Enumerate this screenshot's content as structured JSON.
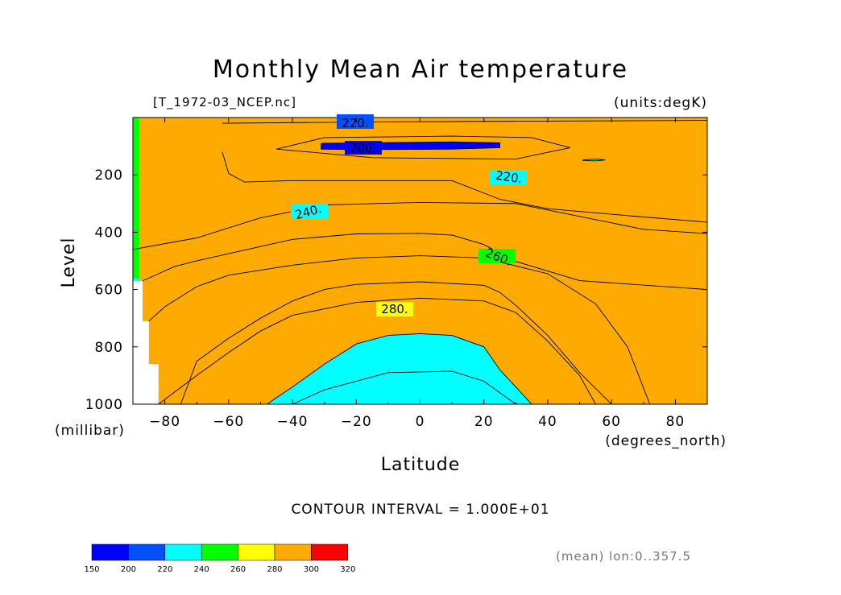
{
  "chart_data": {
    "type": "contour",
    "title": "Monthly Mean Air temperature",
    "file_label": "[T_1972-03_NCEP.nc]",
    "units_label": "(units:degK)",
    "xlabel": "Latitude",
    "x_units": "(degrees_north)",
    "ylabel": "Level",
    "y_units": "(millibar)",
    "footer": "CONTOUR INTERVAL = 1.000E+01",
    "note": "(mean) lon:0..357.5",
    "xlim": [
      -90,
      90
    ],
    "ylim": [
      0,
      1000
    ],
    "y_axis_inverted": true,
    "x_ticks": [
      "−80",
      "−60",
      "−40",
      "−20",
      "0",
      "20",
      "40",
      "60",
      "80"
    ],
    "x_tick_values": [
      -80,
      -60,
      -40,
      -20,
      0,
      20,
      40,
      60,
      80
    ],
    "y_ticks": [
      "200",
      "400",
      "600",
      "800",
      "1000"
    ],
    "y_tick_values": [
      200,
      400,
      600,
      800,
      1000
    ],
    "contour_labels": [
      "220.",
      "200.",
      "220.",
      "240.",
      "260.",
      "280."
    ],
    "colorbar": {
      "ticks": [
        "150",
        "200",
        "220",
        "240",
        "260",
        "280",
        "300",
        "320"
      ],
      "colors": [
        "#0000ff",
        "#0050ff",
        "#00ffff",
        "#00ff00",
        "#ffff00",
        "#ffaa00",
        "#ff0000"
      ]
    },
    "fill_colors": {
      "c200": "#0000ff",
      "c220": "#0050ff",
      "c240": "#00ffff",
      "c260": "#00ff00",
      "c280": "#ffff00",
      "c300": "#ffaa00"
    },
    "regions": {
      "p220": [
        [
          -62,
          20
        ],
        [
          -12,
          15
        ],
        [
          30,
          13
        ],
        [
          90,
          10
        ],
        [
          90,
          365
        ],
        [
          70,
          347
        ],
        [
          40,
          318
        ],
        [
          25,
          285
        ],
        [
          10,
          220
        ],
        [
          -40,
          220
        ],
        [
          -55,
          225
        ],
        [
          -60,
          195
        ],
        [
          -62,
          120
        ]
      ],
      "p240": [
        [
          -90,
          0
        ],
        [
          90,
          0
        ],
        [
          90,
          600
        ],
        [
          50,
          569
        ],
        [
          30,
          502
        ],
        [
          20,
          443
        ],
        [
          10,
          410
        ],
        [
          0,
          404
        ],
        [
          -20,
          406
        ],
        [
          -40,
          425
        ],
        [
          -50,
          450
        ],
        [
          -60,
          475
        ],
        [
          -70,
          500
        ],
        [
          -77,
          520
        ],
        [
          -85,
          560
        ],
        [
          -90,
          560
        ]
      ],
      "p260": [
        [
          -88,
          0
        ],
        [
          90,
          0
        ],
        [
          90,
          1000
        ],
        [
          60,
          1000
        ],
        [
          50,
          890
        ],
        [
          40,
          760
        ],
        [
          30,
          655
        ],
        [
          25,
          610
        ],
        [
          20,
          585
        ],
        [
          0,
          573
        ],
        [
          -20,
          582
        ],
        [
          -30,
          600
        ],
        [
          -40,
          640
        ],
        [
          -50,
          700
        ],
        [
          -60,
          770
        ],
        [
          -70,
          850
        ],
        [
          -75,
          1000
        ],
        [
          -88,
          1000
        ]
      ],
      "p280": [
        [
          -88,
          0
        ],
        [
          90,
          0
        ],
        [
          90,
          1000
        ],
        [
          35,
          1000
        ],
        [
          25,
          880
        ],
        [
          20,
          800
        ],
        [
          10,
          760
        ],
        [
          0,
          754
        ],
        [
          -10,
          760
        ],
        [
          -20,
          790
        ],
        [
          -30,
          860
        ],
        [
          -40,
          940
        ],
        [
          -48,
          1000
        ],
        [
          -88,
          1000
        ]
      ],
      "p200": [
        [
          -31,
          90
        ],
        [
          10,
          85
        ],
        [
          25,
          88
        ],
        [
          25,
          105
        ],
        [
          10,
          110
        ],
        [
          -20,
          112
        ],
        [
          -31,
          110
        ]
      ],
      "cyanBlob": [
        [
          51,
          148
        ],
        [
          55,
          145
        ],
        [
          58,
          148
        ],
        [
          55,
          151
        ],
        [
          51,
          150
        ]
      ],
      "whiteBlock": [
        [
          -90,
          570
        ],
        [
          -87,
          570
        ],
        [
          -87,
          710
        ],
        [
          -85,
          710
        ],
        [
          -85,
          860
        ],
        [
          -82,
          860
        ],
        [
          -82,
          1000
        ],
        [
          -90,
          1000
        ]
      ]
    },
    "contour_lines": [
      [
        [
          -62,
          20
        ],
        [
          -12,
          15
        ],
        [
          30,
          13
        ],
        [
          90,
          10
        ]
      ],
      [
        [
          90,
          365
        ],
        [
          70,
          347
        ],
        [
          40,
          318
        ],
        [
          25,
          285
        ],
        [
          10,
          220
        ],
        [
          -40,
          220
        ],
        [
          -55,
          225
        ],
        [
          -60,
          195
        ],
        [
          -62,
          120
        ]
      ],
      [
        [
          -31,
          90
        ],
        [
          10,
          85
        ],
        [
          25,
          88
        ],
        [
          25,
          105
        ],
        [
          10,
          110
        ],
        [
          -20,
          112
        ],
        [
          -31,
          110
        ],
        [
          -31,
          90
        ]
      ],
      [
        [
          -45,
          110
        ],
        [
          -30,
          70
        ],
        [
          10,
          65
        ],
        [
          35,
          70
        ],
        [
          47,
          105
        ],
        [
          30,
          145
        ],
        [
          -15,
          140
        ],
        [
          -45,
          110
        ]
      ],
      [
        [
          51,
          148
        ],
        [
          55,
          145
        ],
        [
          58,
          148
        ],
        [
          55,
          151
        ],
        [
          51,
          150
        ],
        [
          51,
          148
        ]
      ],
      [
        [
          -90,
          460
        ],
        [
          -70,
          420
        ],
        [
          -50,
          350
        ],
        [
          -30,
          305
        ],
        [
          0,
          296
        ],
        [
          30,
          300
        ],
        [
          50,
          345
        ],
        [
          70,
          390
        ],
        [
          90,
          405
        ]
      ],
      [
        [
          90,
          600
        ],
        [
          50,
          569
        ],
        [
          30,
          502
        ],
        [
          20,
          443
        ],
        [
          10,
          410
        ],
        [
          0,
          404
        ],
        [
          -20,
          406
        ],
        [
          -40,
          425
        ],
        [
          -50,
          450
        ],
        [
          -60,
          475
        ],
        [
          -70,
          500
        ],
        [
          -77,
          520
        ],
        [
          -85,
          560
        ],
        [
          -87,
          570
        ]
      ],
      [
        [
          -85,
          710
        ],
        [
          -80,
          660
        ],
        [
          -70,
          590
        ],
        [
          -60,
          550
        ],
        [
          -40,
          515
        ],
        [
          -20,
          490
        ],
        [
          0,
          482
        ],
        [
          20,
          490
        ],
        [
          40,
          545
        ],
        [
          55,
          650
        ],
        [
          65,
          800
        ],
        [
          72,
          1000
        ]
      ],
      [
        [
          60,
          1000
        ],
        [
          50,
          890
        ],
        [
          40,
          760
        ],
        [
          30,
          655
        ],
        [
          25,
          610
        ],
        [
          20,
          585
        ],
        [
          0,
          573
        ],
        [
          -20,
          582
        ],
        [
          -30,
          600
        ],
        [
          -40,
          640
        ],
        [
          -50,
          700
        ],
        [
          -60,
          770
        ],
        [
          -70,
          850
        ],
        [
          -75,
          1000
        ]
      ],
      [
        [
          -82,
          1000
        ],
        [
          -70,
          900
        ],
        [
          -60,
          820
        ],
        [
          -50,
          745
        ],
        [
          -40,
          690
        ],
        [
          -20,
          645
        ],
        [
          0,
          630
        ],
        [
          20,
          640
        ],
        [
          30,
          680
        ],
        [
          40,
          780
        ],
        [
          50,
          900
        ],
        [
          55,
          1000
        ]
      ],
      [
        [
          35,
          1000
        ],
        [
          25,
          880
        ],
        [
          20,
          800
        ],
        [
          10,
          760
        ],
        [
          0,
          754
        ],
        [
          -10,
          760
        ],
        [
          -20,
          790
        ],
        [
          -30,
          860
        ],
        [
          -40,
          940
        ],
        [
          -48,
          1000
        ]
      ],
      [
        [
          -40,
          1000
        ],
        [
          -30,
          950
        ],
        [
          -10,
          890
        ],
        [
          10,
          885
        ],
        [
          20,
          920
        ],
        [
          30,
          1000
        ]
      ]
    ]
  }
}
